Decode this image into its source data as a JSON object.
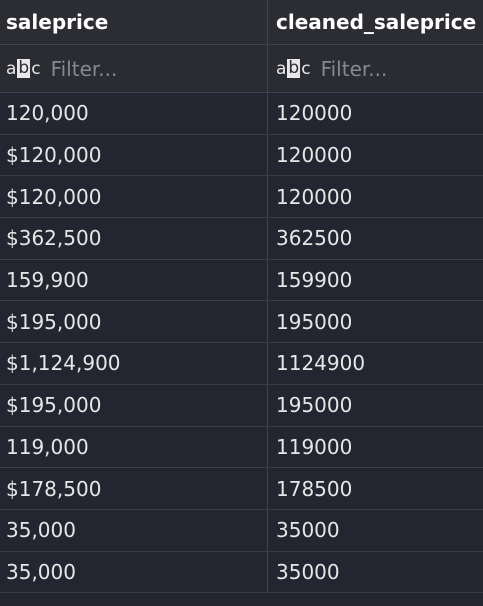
{
  "columns": [
    {
      "header": "saleprice",
      "filter_placeholder": "Filter..."
    },
    {
      "header": "cleaned_saleprice",
      "filter_placeholder": "Filter..."
    }
  ],
  "icons": {
    "filter_type": "abc-text-type-icon"
  },
  "rows": [
    {
      "saleprice": "120,000",
      "cleaned_saleprice": "120000"
    },
    {
      "saleprice": "$120,000",
      "cleaned_saleprice": "120000"
    },
    {
      "saleprice": "$120,000",
      "cleaned_saleprice": "120000"
    },
    {
      "saleprice": "$362,500",
      "cleaned_saleprice": "362500"
    },
    {
      "saleprice": "159,900",
      "cleaned_saleprice": "159900"
    },
    {
      "saleprice": "$195,000",
      "cleaned_saleprice": "195000"
    },
    {
      "saleprice": "$1,124,900",
      "cleaned_saleprice": "1124900"
    },
    {
      "saleprice": "$195,000",
      "cleaned_saleprice": "195000"
    },
    {
      "saleprice": "119,000",
      "cleaned_saleprice": "119000"
    },
    {
      "saleprice": "$178,500",
      "cleaned_saleprice": "178500"
    },
    {
      "saleprice": "35,000",
      "cleaned_saleprice": "35000"
    },
    {
      "saleprice": "35,000",
      "cleaned_saleprice": "35000"
    }
  ],
  "colors": {
    "background": "#232630",
    "header_background": "#2b2d33",
    "text": "#e6e6e6",
    "placeholder": "#868991",
    "grid_line": "#40434b"
  }
}
